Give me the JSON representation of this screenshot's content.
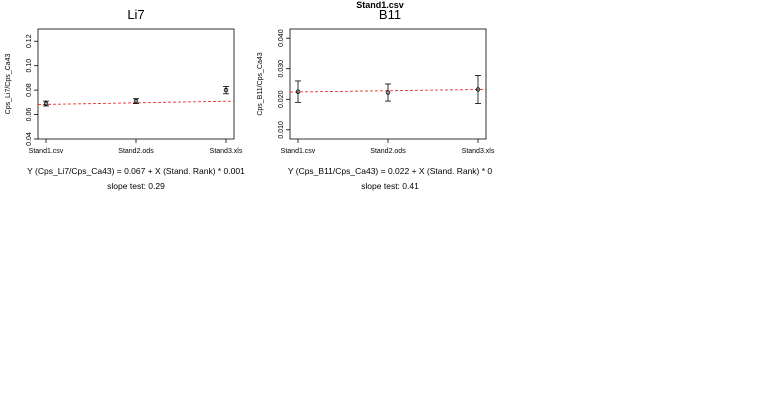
{
  "page": {
    "title": "Stand1.csv"
  },
  "chart_data": [
    {
      "type": "scatter",
      "title": "Li7",
      "xlabel": "",
      "ylabel": "Cps_Li7/Cps_Ca43",
      "categories": [
        "Stand1.csv",
        "Stand2.ods",
        "Stand3.xls"
      ],
      "ylim": [
        0.04,
        0.13
      ],
      "yticks": [
        0.04,
        0.06,
        0.08,
        0.1,
        0.12
      ],
      "ytick_labels": [
        "0.04",
        "0.06",
        "0.08",
        "0.10",
        "0.12"
      ],
      "values": [
        0.069,
        0.071,
        0.08
      ],
      "errors": [
        0.002,
        0.002,
        0.003
      ],
      "fit": {
        "intercept": 0.067,
        "slope": 0.0013
      },
      "formula": "Y (Cps_Li7/Cps_Ca43) = 0.067 + X (Stand. Rank) * 0.001",
      "slope_test": "slope test: 0.29",
      "grid": false
    },
    {
      "type": "scatter",
      "title": "B11",
      "xlabel": "",
      "ylabel": "Cps_B11/Cps_Ca43",
      "categories": [
        "Stand1.csv",
        "Stand2.ods",
        "Stand3.xls"
      ],
      "ylim": [
        0.007,
        0.043
      ],
      "yticks": [
        0.01,
        0.02,
        0.03,
        0.04
      ],
      "ytick_labels": [
        "0.010",
        "0.020",
        "0.030",
        "0.040"
      ],
      "values": [
        0.0225,
        0.0222,
        0.0232
      ],
      "errors": [
        0.0035,
        0.0028,
        0.0046
      ],
      "fit": {
        "intercept": 0.022,
        "slope": 0.0004
      },
      "formula": "Y (Cps_B11/Cps_Ca43) = 0.022 + X (Stand. Rank) * 0",
      "slope_test": "slope test: 0.41",
      "grid": false
    }
  ],
  "colors": {
    "axis": "#000000",
    "points": "#000000",
    "fit_line": "#e8342a",
    "background": "#ffffff"
  }
}
